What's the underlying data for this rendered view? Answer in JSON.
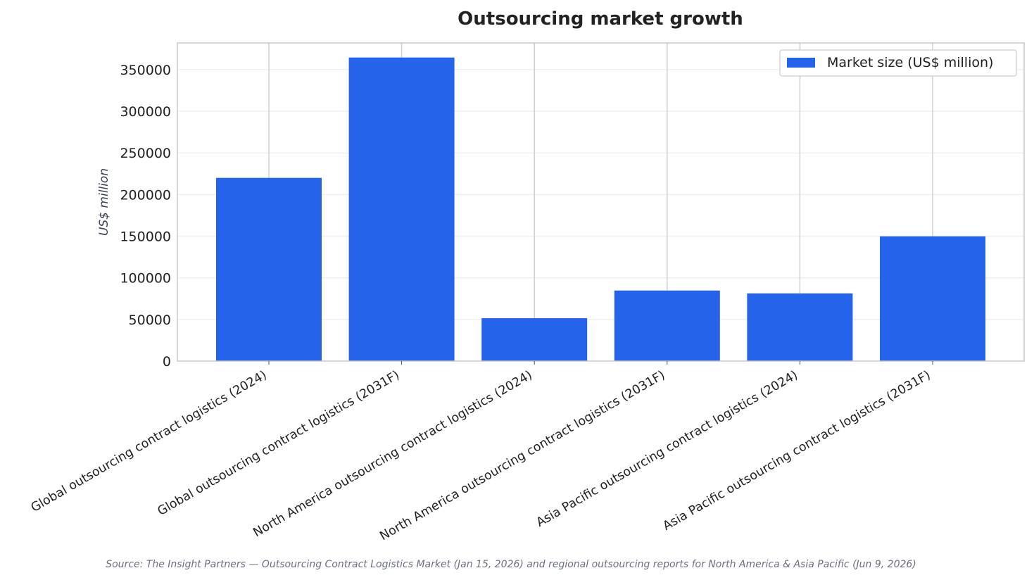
{
  "chart_data": {
    "type": "bar",
    "title": "Outsourcing market growth",
    "xlabel": "",
    "ylabel": "US$ million",
    "categories": [
      "Global outsourcing contract logistics (2024)",
      "Global outsourcing contract logistics (2031F)",
      "North America outsourcing contract logistics (2024)",
      "North America outsourcing contract logistics (2031F)",
      "Asia Pacific outsourcing contract logistics (2024)",
      "Asia Pacific outsourcing contract logistics (2031F)"
    ],
    "series": [
      {
        "name": "Market size (US$ million)",
        "color": "#2563eb",
        "values": [
          220000,
          364500,
          51500,
          84700,
          81300,
          149800
        ]
      }
    ],
    "ylim": [
      0,
      382000
    ],
    "yticks": [
      0,
      50000,
      100000,
      150000,
      200000,
      250000,
      300000,
      350000
    ],
    "grid": true,
    "legend_position": "top-right",
    "source": "Source: The Insight Partners — Outsourcing Contract Logistics Market (Jan 15, 2026) and regional outsourcing reports for North America & Asia Pacific (Jun 9, 2026)"
  }
}
